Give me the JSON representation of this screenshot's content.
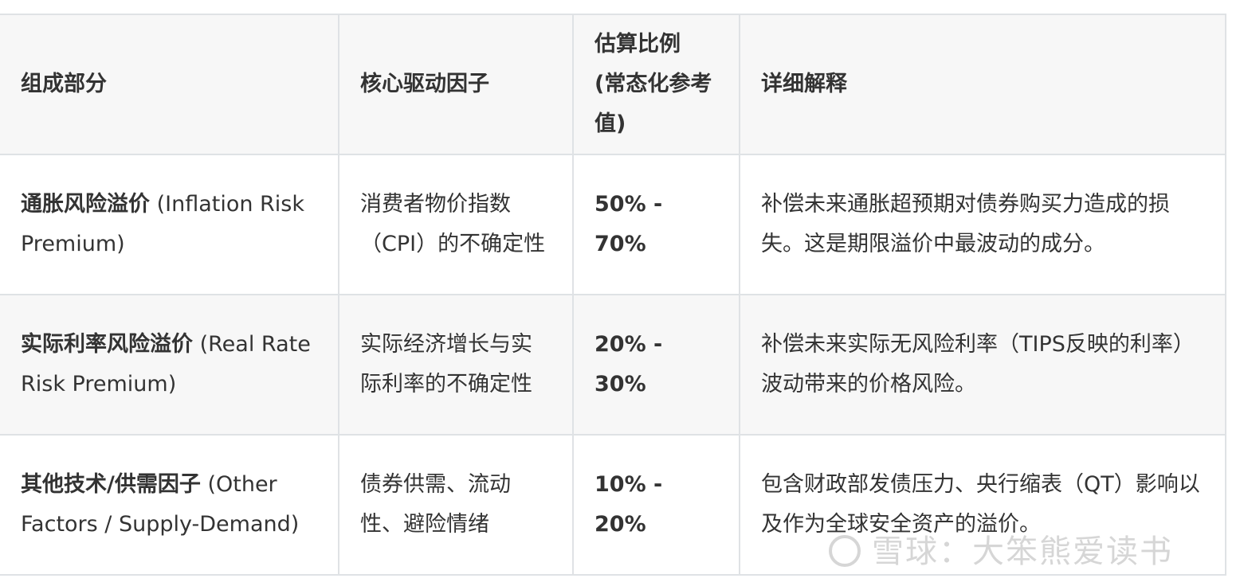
{
  "table": {
    "headers": [
      "组成部分",
      "核心驱动因子",
      "估算比例 (常态化参考值)",
      "详细解释"
    ],
    "rows": [
      {
        "component_cn": "通胀风险溢价",
        "component_en": " (Inflation Risk Premium)",
        "driver": "消费者物价指数（CPI）的不确定性",
        "ratio": "50% - 70%",
        "detail": "补偿未来通胀超预期对债券购买力造成的损失。这是期限溢价中最波动的成分。"
      },
      {
        "component_cn": "实际利率风险溢价",
        "component_en": " (Real Rate Risk Premium)",
        "driver": "实际经济增长与实际利率的不确定性",
        "ratio": "20% - 30%",
        "detail": "补偿未来实际无风险利率（TIPS反映的利率）波动带来的价格风险。"
      },
      {
        "component_cn": "其他技术/供需因子",
        "component_en": " (Other Factors / Supply-Demand)",
        "driver": "债券供需、流动性、避险情绪",
        "ratio": "10% - 20%",
        "detail": "包含财政部发债压力、央行缩表（QT）影响以及作为全球安全资产的溢价。"
      }
    ]
  },
  "watermark": "雪球：大笨熊爱读书"
}
